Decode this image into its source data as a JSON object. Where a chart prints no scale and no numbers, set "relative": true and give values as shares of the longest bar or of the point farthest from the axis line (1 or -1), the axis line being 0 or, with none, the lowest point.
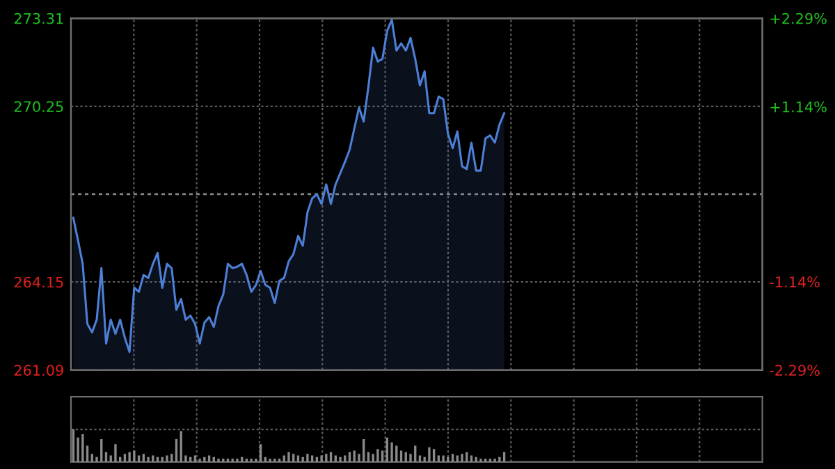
{
  "chart_data": [
    {
      "type": "area",
      "color": "#4d7fd6",
      "categories": [
        null,
        null,
        null,
        null,
        null,
        null,
        null,
        null,
        null,
        null,
        null,
        null,
        null,
        null,
        null,
        null,
        null,
        null,
        null,
        null,
        null,
        null,
        null,
        null,
        null,
        null,
        null,
        null,
        null,
        null,
        null,
        null,
        null,
        null,
        null,
        null,
        null,
        null,
        null,
        null,
        null,
        null,
        null,
        null,
        null,
        null,
        null,
        null,
        null,
        null,
        null,
        null,
        null,
        null,
        null,
        null,
        null,
        null,
        null,
        null,
        null,
        null,
        null,
        null,
        null,
        null,
        null,
        null,
        null,
        null,
        null,
        null,
        null,
        null,
        null,
        null,
        null,
        null,
        null,
        null,
        null,
        null,
        null,
        null,
        null,
        null,
        null,
        null,
        null,
        null,
        null,
        null,
        null
      ],
      "values": [
        266.38,
        265.6,
        264.78,
        262.69,
        262.4,
        262.84,
        264.63,
        262.01,
        262.84,
        262.35,
        262.84,
        262.21,
        261.72,
        263.95,
        263.81,
        264.39,
        264.29,
        264.78,
        265.16,
        263.95,
        264.78,
        264.63,
        263.18,
        263.56,
        262.84,
        262.98,
        262.69,
        262.01,
        262.74,
        262.93,
        262.59,
        263.32,
        263.71,
        264.78,
        264.63,
        264.68,
        264.78,
        264.39,
        263.81,
        264.05,
        264.53,
        264.05,
        263.95,
        263.42,
        264.19,
        264.29,
        264.87,
        265.12,
        265.75,
        265.41,
        266.57,
        267.05,
        267.2,
        266.86,
        267.54,
        266.86,
        267.54,
        267.93,
        268.32,
        268.75,
        269.48,
        270.21,
        269.72,
        270.93,
        272.29,
        271.81,
        271.9,
        272.87,
        273.26,
        272.19,
        272.44,
        272.19,
        272.63,
        271.9,
        270.98,
        271.47,
        270.01,
        270.01,
        270.59,
        270.5,
        269.29,
        268.8,
        269.38,
        268.17,
        268.07,
        268.99,
        268.02,
        268.02,
        269.14,
        269.24,
        268.99,
        269.62,
        270.01
      ],
      "ylim": [
        261.09,
        273.31
      ],
      "yticks": [
        261.09,
        264.15,
        270.25,
        273.31
      ],
      "y2lim": [
        -2.29,
        2.29
      ],
      "y2ticks": [
        {
          "value": -2.29,
          "label": "-2.29%"
        },
        {
          "value": -1.14,
          "label": "-1.14%"
        },
        {
          "value": 1.14,
          "label": "+1.14%"
        },
        {
          "value": 2.29,
          "label": "+2.29%"
        }
      ],
      "ref_lines": [
        {
          "axis": "y",
          "value": 267.2,
          "color": "#8c8c8c",
          "line_style": "dashed"
        }
      ],
      "grid": true,
      "tick_labels": "y"
    },
    {
      "type": "bar",
      "color": "#8a8a8a",
      "relative": true,
      "tick_labels": false,
      "grid": true,
      "categories": [
        null,
        null,
        null,
        null,
        null,
        null,
        null,
        null,
        null,
        null,
        null,
        null,
        null,
        null,
        null,
        null,
        null,
        null,
        null,
        null,
        null,
        null,
        null,
        null,
        null,
        null,
        null,
        null,
        null,
        null,
        null,
        null,
        null,
        null,
        null,
        null,
        null,
        null,
        null,
        null,
        null,
        null,
        null,
        null,
        null,
        null,
        null,
        null,
        null,
        null,
        null,
        null,
        null,
        null,
        null,
        null,
        null,
        null,
        null,
        null,
        null,
        null,
        null,
        null,
        null,
        null,
        null,
        null,
        null,
        null,
        null,
        null,
        null,
        null,
        null,
        null,
        null,
        null,
        null,
        null,
        null,
        null,
        null,
        null,
        null,
        null,
        null,
        null,
        null,
        null,
        null,
        null,
        null
      ],
      "values": [
        1.0,
        0.75,
        0.85,
        0.5,
        0.25,
        0.15,
        0.7,
        0.3,
        0.2,
        0.55,
        0.15,
        0.25,
        0.3,
        0.35,
        0.2,
        0.25,
        0.15,
        0.2,
        0.15,
        0.15,
        0.2,
        0.25,
        0.7,
        0.95,
        0.2,
        0.15,
        0.2,
        0.1,
        0.15,
        0.2,
        0.15,
        0.1,
        0.1,
        0.1,
        0.1,
        0.1,
        0.15,
        0.1,
        0.1,
        0.1,
        0.55,
        0.15,
        0.1,
        0.1,
        0.1,
        0.2,
        0.3,
        0.25,
        0.2,
        0.15,
        0.25,
        0.2,
        0.15,
        0.2,
        0.25,
        0.3,
        0.2,
        0.15,
        0.2,
        0.3,
        0.35,
        0.25,
        0.7,
        0.3,
        0.25,
        0.4,
        0.35,
        0.75,
        0.6,
        0.5,
        0.35,
        0.3,
        0.25,
        0.5,
        0.2,
        0.15,
        0.45,
        0.4,
        0.2,
        0.2,
        0.15,
        0.25,
        0.2,
        0.25,
        0.3,
        0.2,
        0.15,
        0.1,
        0.1,
        0.1,
        0.1,
        0.15,
        0.3
      ]
    }
  ]
}
